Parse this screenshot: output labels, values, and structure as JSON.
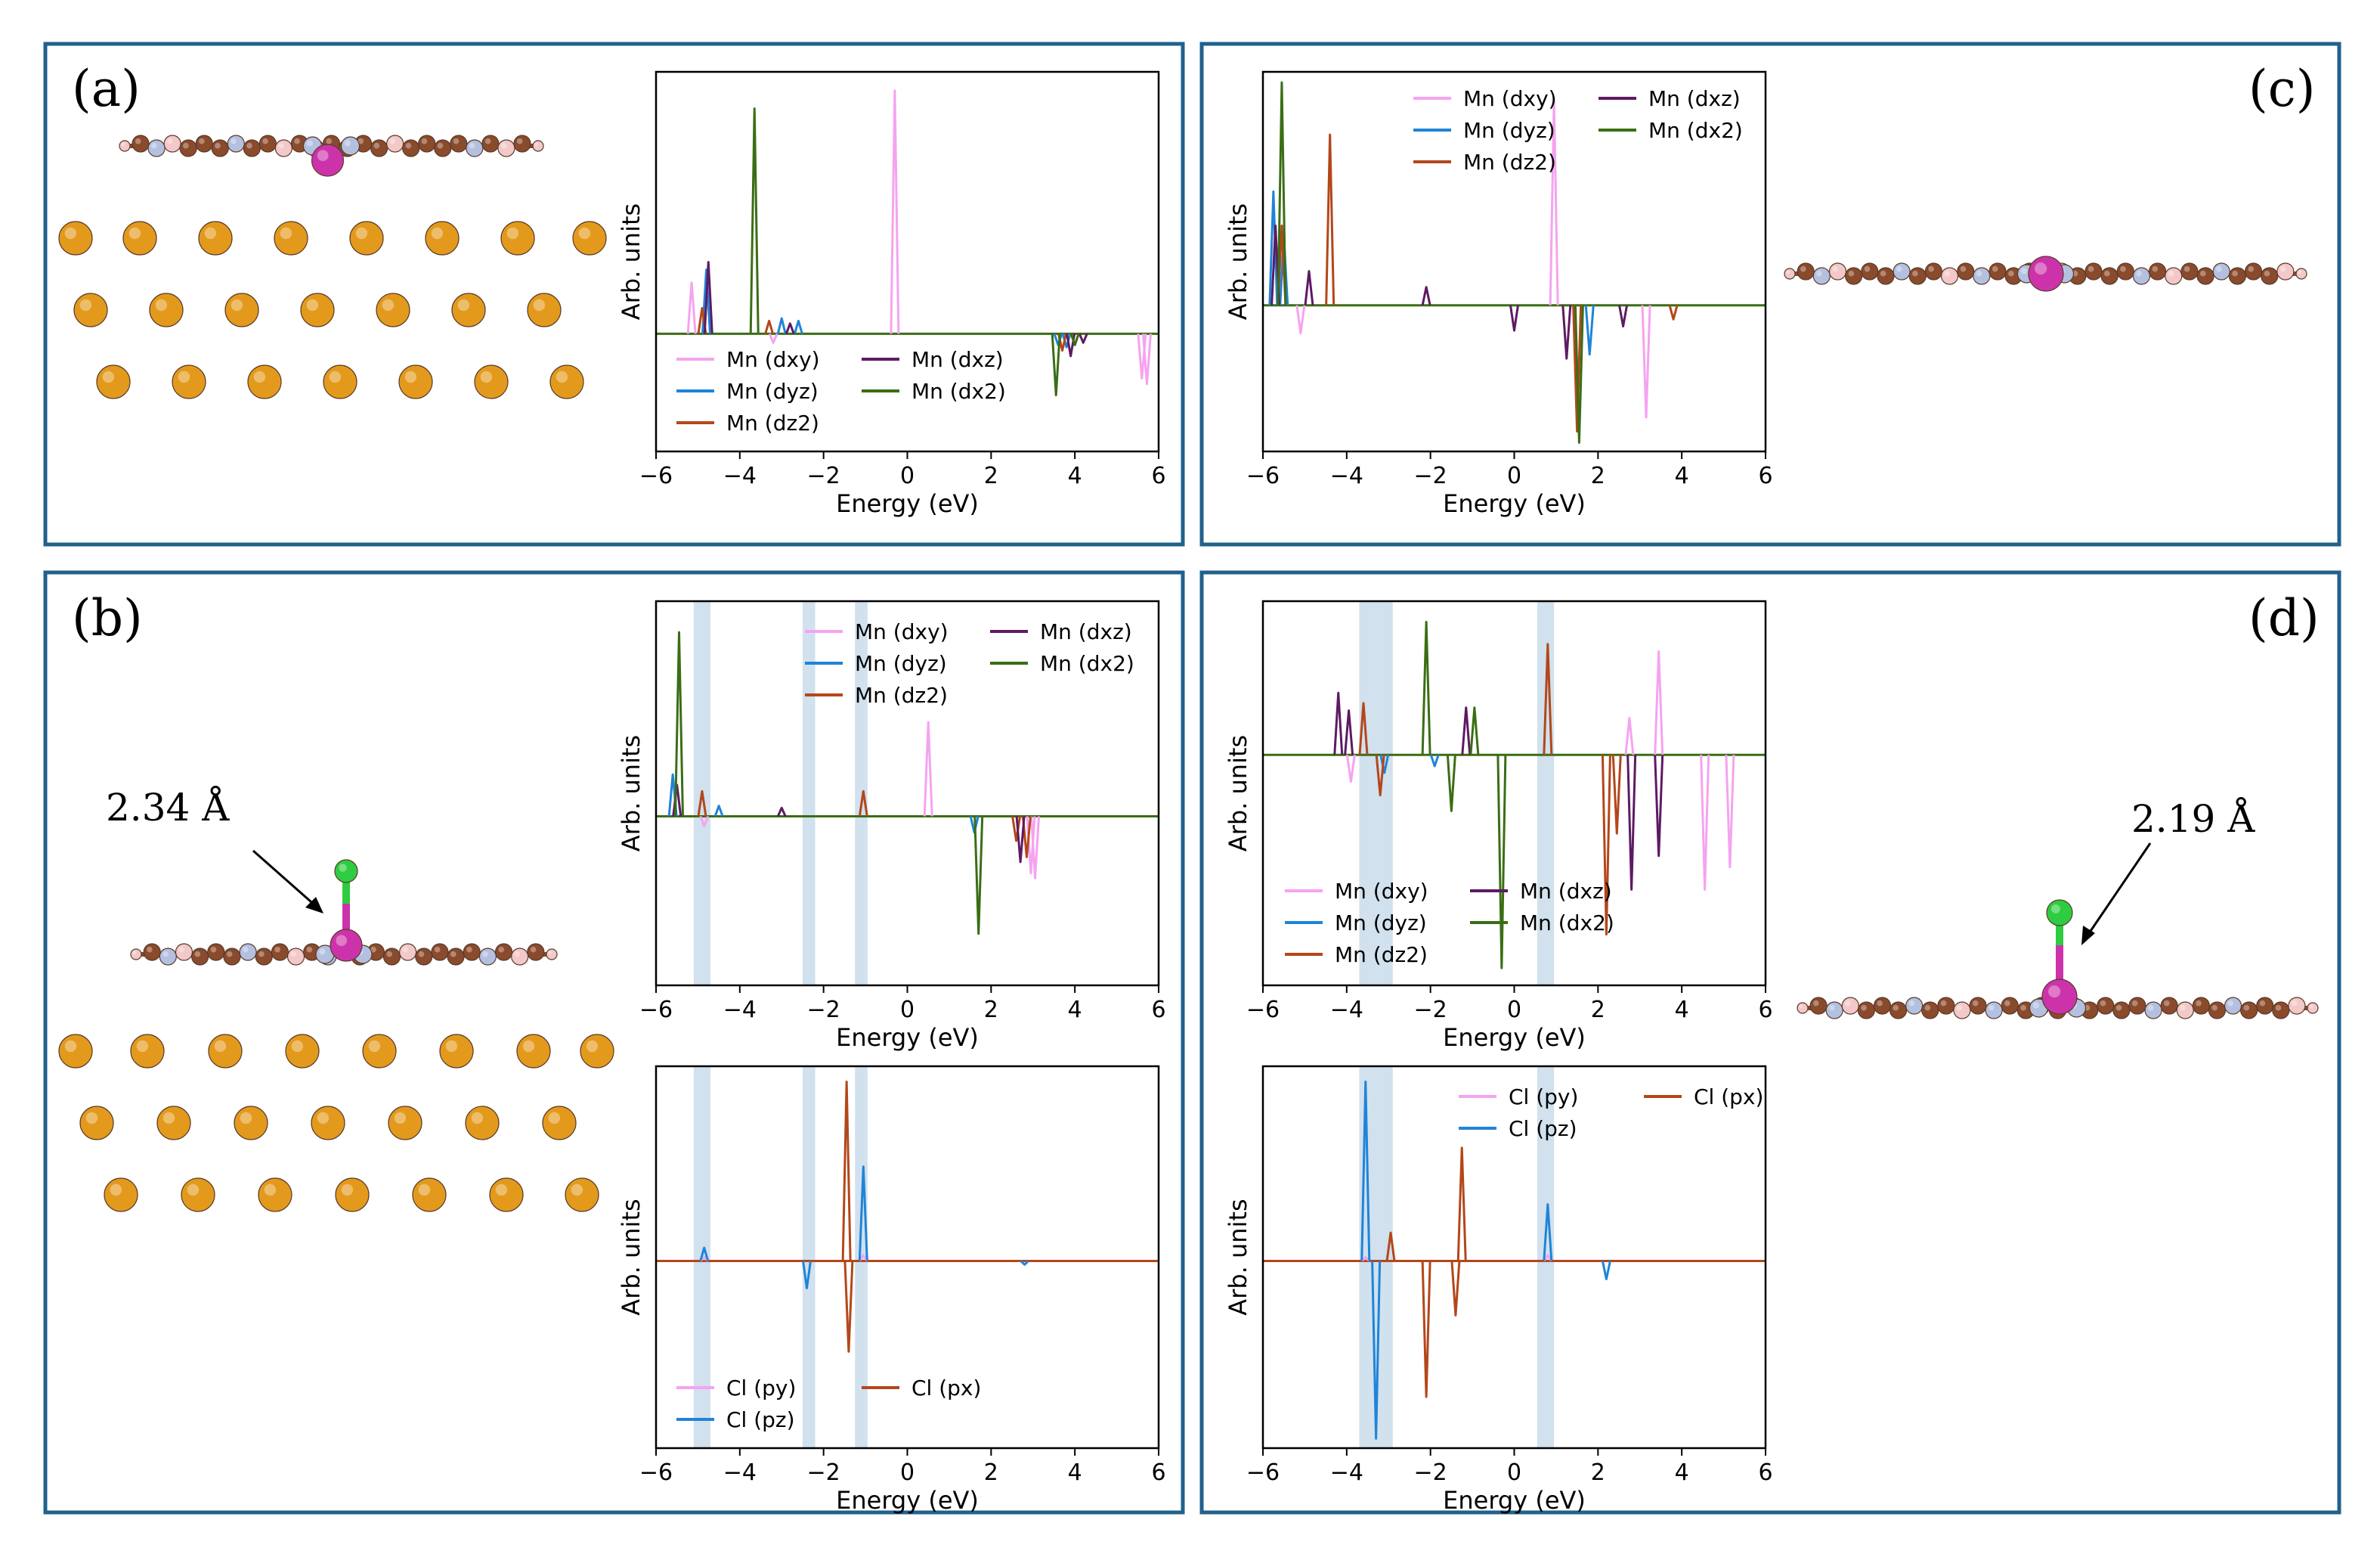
{
  "figure": {
    "colors": {
      "frame": "#21618c",
      "Mn (dxy)": "#f5a3f0",
      "Mn (dyz)": "#1f84d8",
      "Mn (dz2)": "#b3471a",
      "Mn (dxz)": "#5e1a63",
      "Mn (dx2)": "#3a6e14",
      "Cl (py)": "#f5a3f0",
      "Cl (pz)": "#1f84d8",
      "Cl (px)": "#b3471a",
      "highlight": "#c9dceb",
      "gold_atom": "#e39a1c",
      "carbon": "#8a4a2c",
      "nitrogen": "#b4c0e0",
      "hydrogen": "#f2c8c8",
      "manganese": "#cc33aa",
      "chlorine": "#2ecc40",
      "bond": "#cc33aa"
    },
    "panels": [
      {
        "label": "(a)"
      },
      {
        "label": "(b)",
        "distance": "2.34 Å"
      },
      {
        "label": "(c)"
      },
      {
        "label": "(d)",
        "distance": "2.19 Å"
      }
    ]
  },
  "chart_data": [
    {
      "id": "a-mn",
      "type": "line",
      "xlabel": "Energy (eV)",
      "ylabel": "Arb. units",
      "xlim": [
        -6,
        6
      ],
      "ylim": [
        -1,
        1
      ],
      "xticks": [
        "−6",
        "−4",
        "−2",
        "0",
        "2",
        "4",
        "6"
      ],
      "legend": [
        [
          "Mn (dxy)",
          "Mn (dyz)",
          "Mn (dz2)"
        ],
        [
          "Mn (dxz)",
          "Mn (dx2)"
        ]
      ],
      "series": [
        {
          "name": "Mn (dxy)",
          "x": [
            -5.15,
            -3.2,
            -0.3,
            5.6,
            5.72
          ],
          "y": [
            0.2,
            -0.08,
            0.95,
            -0.4,
            -0.45
          ]
        },
        {
          "name": "Mn (dyz)",
          "x": [
            -4.8,
            -3.0,
            -2.6,
            3.6,
            3.8
          ],
          "y": [
            0.25,
            0.06,
            0.05,
            -0.1,
            -0.12
          ]
        },
        {
          "name": "Mn (dz2)",
          "x": [
            -4.9,
            -3.3,
            3.7,
            4.0
          ],
          "y": [
            0.1,
            0.05,
            -0.15,
            -0.1
          ]
        },
        {
          "name": "Mn (dxz)",
          "x": [
            -4.75,
            -2.8,
            3.9,
            4.2
          ],
          "y": [
            0.28,
            0.04,
            -0.2,
            -0.08
          ]
        },
        {
          "name": "Mn (dx2)",
          "x": [
            -3.65,
            3.55,
            4.0
          ],
          "y": [
            0.88,
            -0.55,
            -0.1
          ]
        }
      ]
    },
    {
      "id": "b-mn",
      "type": "line",
      "xlabel": "Energy (eV)",
      "ylabel": "Arb. units",
      "xlim": [
        -6,
        6
      ],
      "ylim": [
        -1,
        1
      ],
      "xticks": [
        "−6",
        "−4",
        "−2",
        "0",
        "2",
        "4",
        "6"
      ],
      "legend": [
        [
          "Mn (dxy)",
          "Mn (dyz)",
          "Mn (dz2)"
        ],
        [
          "Mn (dxz)",
          "Mn (dx2)"
        ]
      ],
      "highlight_bands": [
        [
          -5.1,
          -4.7
        ],
        [
          -2.5,
          -2.2
        ],
        [
          -1.25,
          -0.95
        ]
      ],
      "series": [
        {
          "name": "Mn (dxy)",
          "x": [
            -4.85,
            0.5,
            2.95,
            3.05
          ],
          "y": [
            -0.06,
            0.45,
            -0.35,
            -0.38
          ]
        },
        {
          "name": "Mn (dyz)",
          "x": [
            -5.6,
            -4.5,
            1.6
          ],
          "y": [
            0.2,
            0.05,
            -0.1
          ]
        },
        {
          "name": "Mn (dz2)",
          "x": [
            -4.9,
            -1.05,
            2.6,
            2.85
          ],
          "y": [
            0.12,
            0.12,
            -0.15,
            -0.25
          ]
        },
        {
          "name": "Mn (dxz)",
          "x": [
            -5.5,
            -3.0,
            2.7
          ],
          "y": [
            0.15,
            0.04,
            -0.28
          ]
        },
        {
          "name": "Mn (dx2)",
          "x": [
            -5.45,
            1.7
          ],
          "y": [
            0.88,
            -0.72
          ]
        }
      ]
    },
    {
      "id": "b-cl",
      "type": "line",
      "xlabel": "Energy (eV)",
      "ylabel": "Arb. units",
      "xlim": [
        -6,
        6
      ],
      "ylim": [
        -1,
        1
      ],
      "xticks": [
        "−6",
        "−4",
        "−2",
        "0",
        "2",
        "4",
        "6"
      ],
      "legend": [
        [
          "Cl (py)",
          "Cl (pz)"
        ],
        [
          "Cl (px)"
        ]
      ],
      "highlight_bands": [
        [
          -5.1,
          -4.7
        ],
        [
          -2.5,
          -2.2
        ],
        [
          -1.25,
          -0.95
        ]
      ],
      "series": [
        {
          "name": "Cl (py)",
          "x": [
            -4.85,
            -1.05
          ],
          "y": [
            0.02,
            0.03
          ]
        },
        {
          "name": "Cl (pz)",
          "x": [
            -4.85,
            -2.4,
            -1.05,
            2.8
          ],
          "y": [
            0.07,
            -0.15,
            0.5,
            -0.02
          ]
        },
        {
          "name": "Cl (px)",
          "x": [
            -1.45,
            -1.4
          ],
          "y": [
            0.95,
            -0.5
          ]
        }
      ]
    },
    {
      "id": "c-mn",
      "type": "line",
      "xlabel": "Energy (eV)",
      "ylabel": "Arb. units",
      "xlim": [
        -6,
        6
      ],
      "ylim": [
        -1,
        1
      ],
      "xticks": [
        "−6",
        "−4",
        "−2",
        "0",
        "2",
        "4",
        "6"
      ],
      "legend": [
        [
          "Mn (dxy)",
          "Mn (dyz)",
          "Mn (dz2)"
        ],
        [
          "Mn (dxz)",
          "Mn (dx2)"
        ]
      ],
      "series": [
        {
          "name": "Mn (dxy)",
          "x": [
            -5.1,
            0.95,
            3.15
          ],
          "y": [
            -0.2,
            0.9,
            -0.8
          ]
        },
        {
          "name": "Mn (dyz)",
          "x": [
            -5.75,
            -5.5,
            1.8
          ],
          "y": [
            0.5,
            0.3,
            -0.35
          ]
        },
        {
          "name": "Mn (dz2)",
          "x": [
            -5.55,
            -4.4,
            1.5,
            3.8
          ],
          "y": [
            0.35,
            0.75,
            -0.9,
            -0.1
          ]
        },
        {
          "name": "Mn (dxz)",
          "x": [
            -5.7,
            -4.9,
            -2.1,
            0,
            1.25,
            2.6
          ],
          "y": [
            0.35,
            0.15,
            0.08,
            -0.18,
            -0.38,
            -0.15
          ]
        },
        {
          "name": "Mn (dx2)",
          "x": [
            -5.55,
            1.55
          ],
          "y": [
            0.98,
            -0.98
          ]
        }
      ]
    },
    {
      "id": "d-mn",
      "type": "line",
      "xlabel": "Energy (eV)",
      "ylabel": "Arb. units",
      "xlim": [
        -6,
        6
      ],
      "ylim": [
        -1,
        1
      ],
      "xticks": [
        "−6",
        "−4",
        "−2",
        "0",
        "2",
        "4",
        "6"
      ],
      "legend": [
        [
          "Mn (dxy)",
          "Mn (dyz)",
          "Mn (dz2)"
        ],
        [
          "Mn (dxz)",
          "Mn (dx2)"
        ]
      ],
      "highlight_bands": [
        [
          -3.7,
          -2.9
        ],
        [
          0.55,
          0.95
        ]
      ],
      "series": [
        {
          "name": "Mn (dxy)",
          "x": [
            -3.9,
            2.75,
            3.45,
            4.55,
            5.15
          ],
          "y": [
            -0.12,
            0.25,
            0.7,
            -0.6,
            -0.5
          ]
        },
        {
          "name": "Mn (dyz)",
          "x": [
            -3.1,
            -1.9
          ],
          "y": [
            -0.08,
            -0.05
          ]
        },
        {
          "name": "Mn (dz2)",
          "x": [
            -3.6,
            -3.2,
            0.8,
            2.2,
            2.45
          ],
          "y": [
            0.35,
            -0.18,
            0.75,
            -0.8,
            -0.35
          ]
        },
        {
          "name": "Mn (dxz)",
          "x": [
            -4.2,
            -3.95,
            -1.15,
            2.8,
            3.45
          ],
          "y": [
            0.42,
            0.3,
            0.32,
            -0.6,
            -0.45
          ]
        },
        {
          "name": "Mn (dx2)",
          "x": [
            -2.1,
            -1.5,
            -0.95,
            -0.3
          ],
          "y": [
            0.9,
            -0.25,
            0.32,
            -0.95
          ]
        }
      ]
    },
    {
      "id": "d-cl",
      "type": "line",
      "xlabel": "Energy (eV)",
      "ylabel": "Arb. units",
      "xlim": [
        -6,
        6
      ],
      "ylim": [
        -1,
        1
      ],
      "xticks": [
        "−6",
        "−4",
        "−2",
        "0",
        "2",
        "4",
        "6"
      ],
      "legend": [
        [
          "Cl (py)",
          "Cl (pz)"
        ],
        [
          "Cl (px)"
        ]
      ],
      "highlight_bands": [
        [
          -3.7,
          -2.9
        ],
        [
          0.55,
          0.95
        ]
      ],
      "series": [
        {
          "name": "Cl (py)",
          "x": [
            -3.55,
            0.8
          ],
          "y": [
            0.02,
            0.03
          ]
        },
        {
          "name": "Cl (pz)",
          "x": [
            -3.55,
            -3.3,
            0.8,
            2.2
          ],
          "y": [
            0.95,
            -0.98,
            0.3,
            -0.1
          ]
        },
        {
          "name": "Cl (px)",
          "x": [
            -2.95,
            -2.1,
            -1.25,
            -1.4
          ],
          "y": [
            0.15,
            -0.75,
            0.6,
            -0.3
          ]
        }
      ]
    }
  ]
}
